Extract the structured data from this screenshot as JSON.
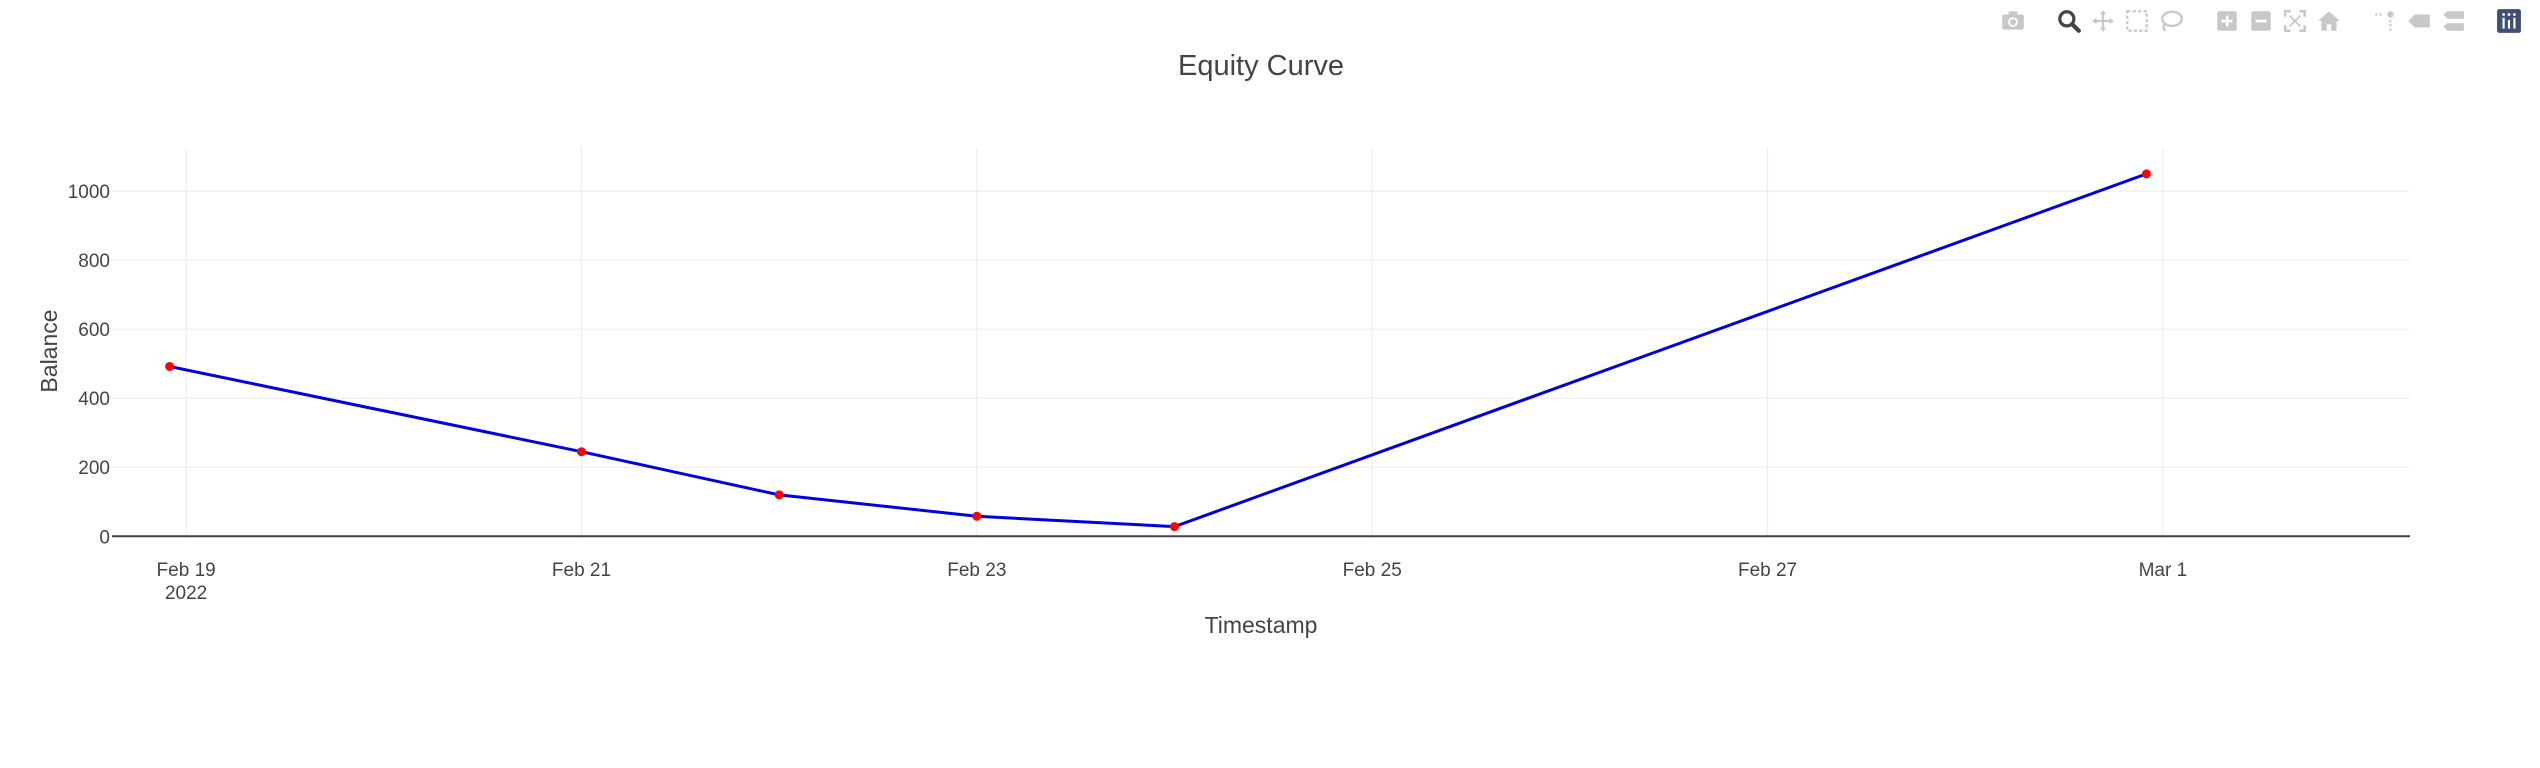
{
  "modebar": {
    "buttons": [
      {
        "name": "camera-icon",
        "group": 0
      },
      {
        "name": "zoom-icon",
        "group": 1,
        "active": true
      },
      {
        "name": "pan-icon",
        "group": 1
      },
      {
        "name": "box-select-icon",
        "group": 1
      },
      {
        "name": "lasso-select-icon",
        "group": 1
      },
      {
        "name": "zoom-in-icon",
        "group": 2
      },
      {
        "name": "zoom-out-icon",
        "group": 2
      },
      {
        "name": "autoscale-icon",
        "group": 2
      },
      {
        "name": "reset-axes-icon",
        "group": 2
      },
      {
        "name": "spike-lines-icon",
        "group": 3
      },
      {
        "name": "hover-closest-icon",
        "group": 3
      },
      {
        "name": "hover-compare-icon",
        "group": 3
      },
      {
        "name": "plotly-logo-icon",
        "group": 4
      }
    ],
    "icon_color": "#c8c8c8",
    "active_color": "#444444",
    "logo_color": "#3f4f75"
  },
  "chart_data": {
    "type": "line",
    "title": "Equity Curve",
    "xlabel": "Timestamp",
    "ylabel": "Balance",
    "x_ticks": [
      {
        "date": "2022-02-19",
        "label": "Feb 19",
        "sublabel": "2022"
      },
      {
        "date": "2022-02-21",
        "label": "Feb 21",
        "sublabel": ""
      },
      {
        "date": "2022-02-23",
        "label": "Feb 23",
        "sublabel": ""
      },
      {
        "date": "2022-02-25",
        "label": "Feb 25",
        "sublabel": ""
      },
      {
        "date": "2022-02-27",
        "label": "Feb 27",
        "sublabel": ""
      },
      {
        "date": "2022-03-01",
        "label": "Mar 1",
        "sublabel": ""
      }
    ],
    "y_ticks": [
      0,
      200,
      400,
      600,
      800,
      1000
    ],
    "xlim": [
      "2022-02-18T15:00",
      "2022-03-02T06:00"
    ],
    "ylim": [
      -5,
      1125
    ],
    "grid": true,
    "series": [
      {
        "line_color": "#0000dd",
        "marker_color": "#ff0000",
        "points": [
          {
            "x": "2022-02-18T22:00",
            "y": 492
          },
          {
            "x": "2022-02-21T00:00",
            "y": 245
          },
          {
            "x": "2022-02-22T00:00",
            "y": 120
          },
          {
            "x": "2022-02-23T00:00",
            "y": 58
          },
          {
            "x": "2022-02-24T00:00",
            "y": 28
          },
          {
            "x": "2022-02-28T22:00",
            "y": 1050
          }
        ]
      }
    ]
  }
}
